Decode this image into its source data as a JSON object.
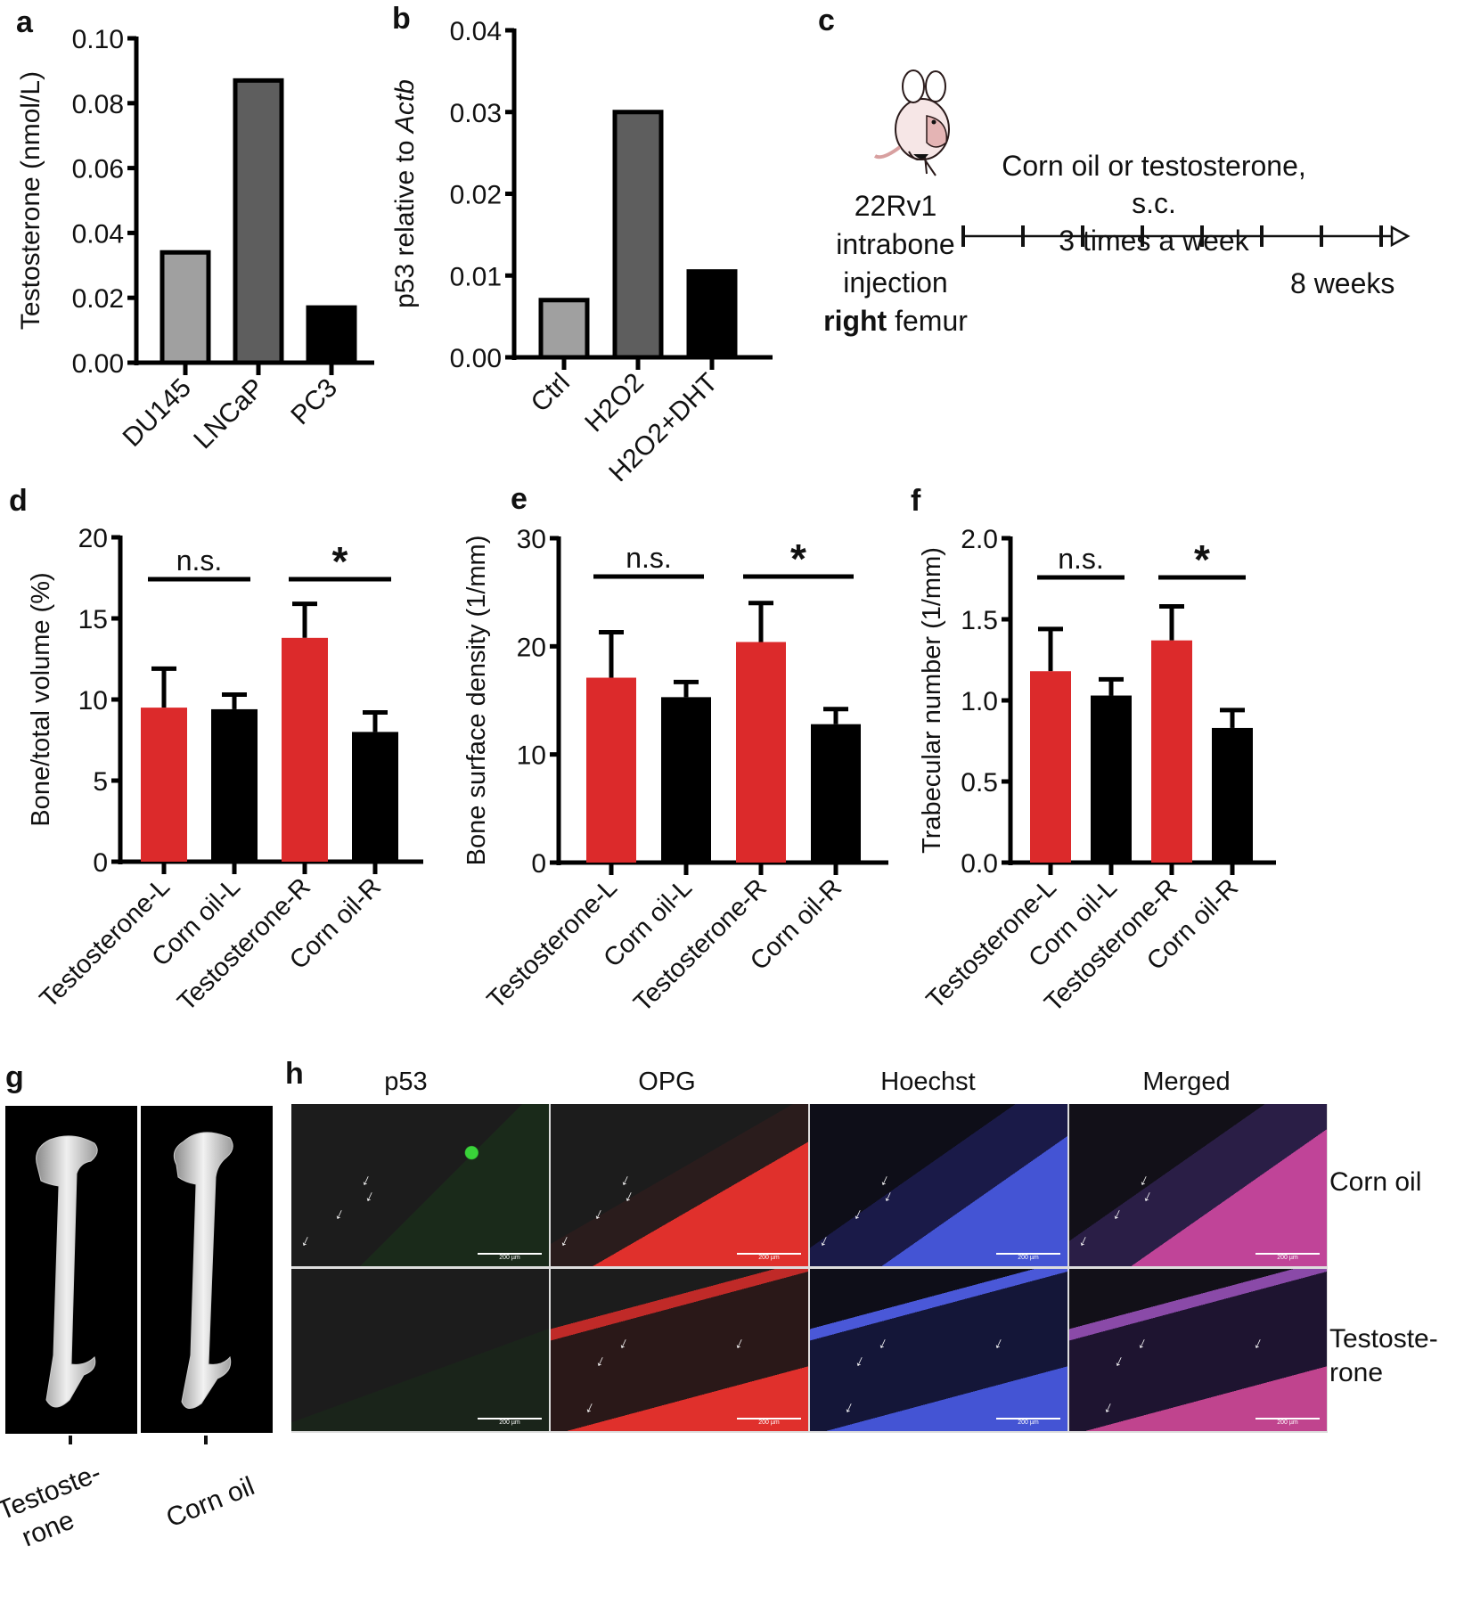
{
  "panels": {
    "a": "a",
    "b": "b",
    "c": "c",
    "d": "d",
    "e": "e",
    "f": "f",
    "g": "g",
    "h": "h"
  },
  "chart_data": [
    {
      "id": "a",
      "type": "bar",
      "title": "",
      "xlabel": "",
      "ylabel": "Testosterone (nmol/L)",
      "categories": [
        "DU145",
        "LNCaP",
        "PC3"
      ],
      "values": [
        0.034,
        0.087,
        0.017
      ],
      "colors": [
        "#a0a0a0",
        "#5e5e5e",
        "#000000"
      ],
      "ylim": [
        0,
        0.1
      ],
      "yticks": [
        "0.00",
        "0.02",
        "0.04",
        "0.06",
        "0.08",
        "0.10"
      ],
      "grid": false,
      "legend": null
    },
    {
      "id": "b",
      "type": "bar",
      "title": "",
      "xlabel": "",
      "ylabel": "p53 relative to Actb",
      "ylabel_parts": [
        "p53 relative to ",
        "Actb"
      ],
      "categories": [
        "Ctrl",
        "H2O2",
        "H2O2+DHT"
      ],
      "values": [
        0.007,
        0.03,
        0.0105
      ],
      "colors": [
        "#a0a0a0",
        "#5e5e5e",
        "#000000"
      ],
      "ylim": [
        0,
        0.04
      ],
      "yticks": [
        "0.00",
        "0.01",
        "0.02",
        "0.03",
        "0.04"
      ],
      "grid": false,
      "legend": null
    },
    {
      "id": "d",
      "type": "bar",
      "ylabel": "Bone/total volume (%)",
      "categories": [
        "Testosterone-L",
        "Corn oil-L",
        "Testosterone-R",
        "Corn oil-R"
      ],
      "values": [
        9.5,
        9.4,
        13.8,
        8.0
      ],
      "errors": [
        2.4,
        0.9,
        2.1,
        1.2
      ],
      "colors": [
        "#dc2a2b",
        "#000000",
        "#dc2a2b",
        "#000000"
      ],
      "ylim": [
        0,
        20
      ],
      "yticks": [
        "0",
        "5",
        "10",
        "15",
        "20"
      ],
      "annotations": [
        {
          "text": "n.s.",
          "from": 0,
          "to": 1
        },
        {
          "text": "*",
          "from": 2,
          "to": 3
        }
      ],
      "grid": false
    },
    {
      "id": "e",
      "type": "bar",
      "ylabel": "Bone surface density (1/mm)",
      "categories": [
        "Testosterone-L",
        "Corn oil-L",
        "Testosterone-R",
        "Corn oil-R"
      ],
      "values": [
        17.1,
        15.3,
        20.4,
        12.8
      ],
      "errors": [
        4.2,
        1.4,
        3.6,
        1.4
      ],
      "colors": [
        "#dc2a2b",
        "#000000",
        "#dc2a2b",
        "#000000"
      ],
      "ylim": [
        0,
        30
      ],
      "yticks": [
        "0",
        "10",
        "20",
        "30"
      ],
      "annotations": [
        {
          "text": "n.s.",
          "from": 0,
          "to": 1
        },
        {
          "text": "*",
          "from": 2,
          "to": 3
        }
      ],
      "grid": false
    },
    {
      "id": "f",
      "type": "bar",
      "ylabel": "Trabecular number (1/mm)",
      "categories": [
        "Testosterone-L",
        "Corn oil-L",
        "Testosterone-R",
        "Corn oil-R"
      ],
      "values": [
        1.18,
        1.03,
        1.37,
        0.83
      ],
      "errors": [
        0.26,
        0.1,
        0.21,
        0.11
      ],
      "colors": [
        "#dc2a2b",
        "#000000",
        "#dc2a2b",
        "#000000"
      ],
      "ylim": [
        0,
        2.0
      ],
      "yticks": [
        "0.0",
        "0.5",
        "1.0",
        "1.5",
        "2.0"
      ],
      "annotations": [
        {
          "text": "n.s.",
          "from": 0,
          "to": 1
        },
        {
          "text": "*",
          "from": 2,
          "to": 3
        }
      ],
      "grid": false
    }
  ],
  "panel_c": {
    "cell_line": "22Rv1",
    "line2": "intrabone",
    "line3": "injection",
    "line4_bold": "right",
    "line4_rest": " femur",
    "treatment_line1": "Corn oil or testosterone, s.c.",
    "treatment_line2": "3 times a week",
    "duration": "8 weeks",
    "timeline_ticks": 8
  },
  "panel_g": {
    "labels": [
      "Testoste-\nrone",
      "Corn oil"
    ],
    "label_line1": [
      "Testoste-",
      "Corn oil"
    ],
    "label_line2": [
      "rone",
      ""
    ]
  },
  "panel_h": {
    "columns": [
      "p53",
      "OPG",
      "Hoechst",
      "Merged"
    ],
    "rows": [
      "Corn oil",
      "Testoste-\nrone"
    ],
    "row_label_1": "Corn oil",
    "row_label_2_line1": "Testoste-",
    "row_label_2_line2": "rone",
    "scale_bar": "200 µm"
  }
}
